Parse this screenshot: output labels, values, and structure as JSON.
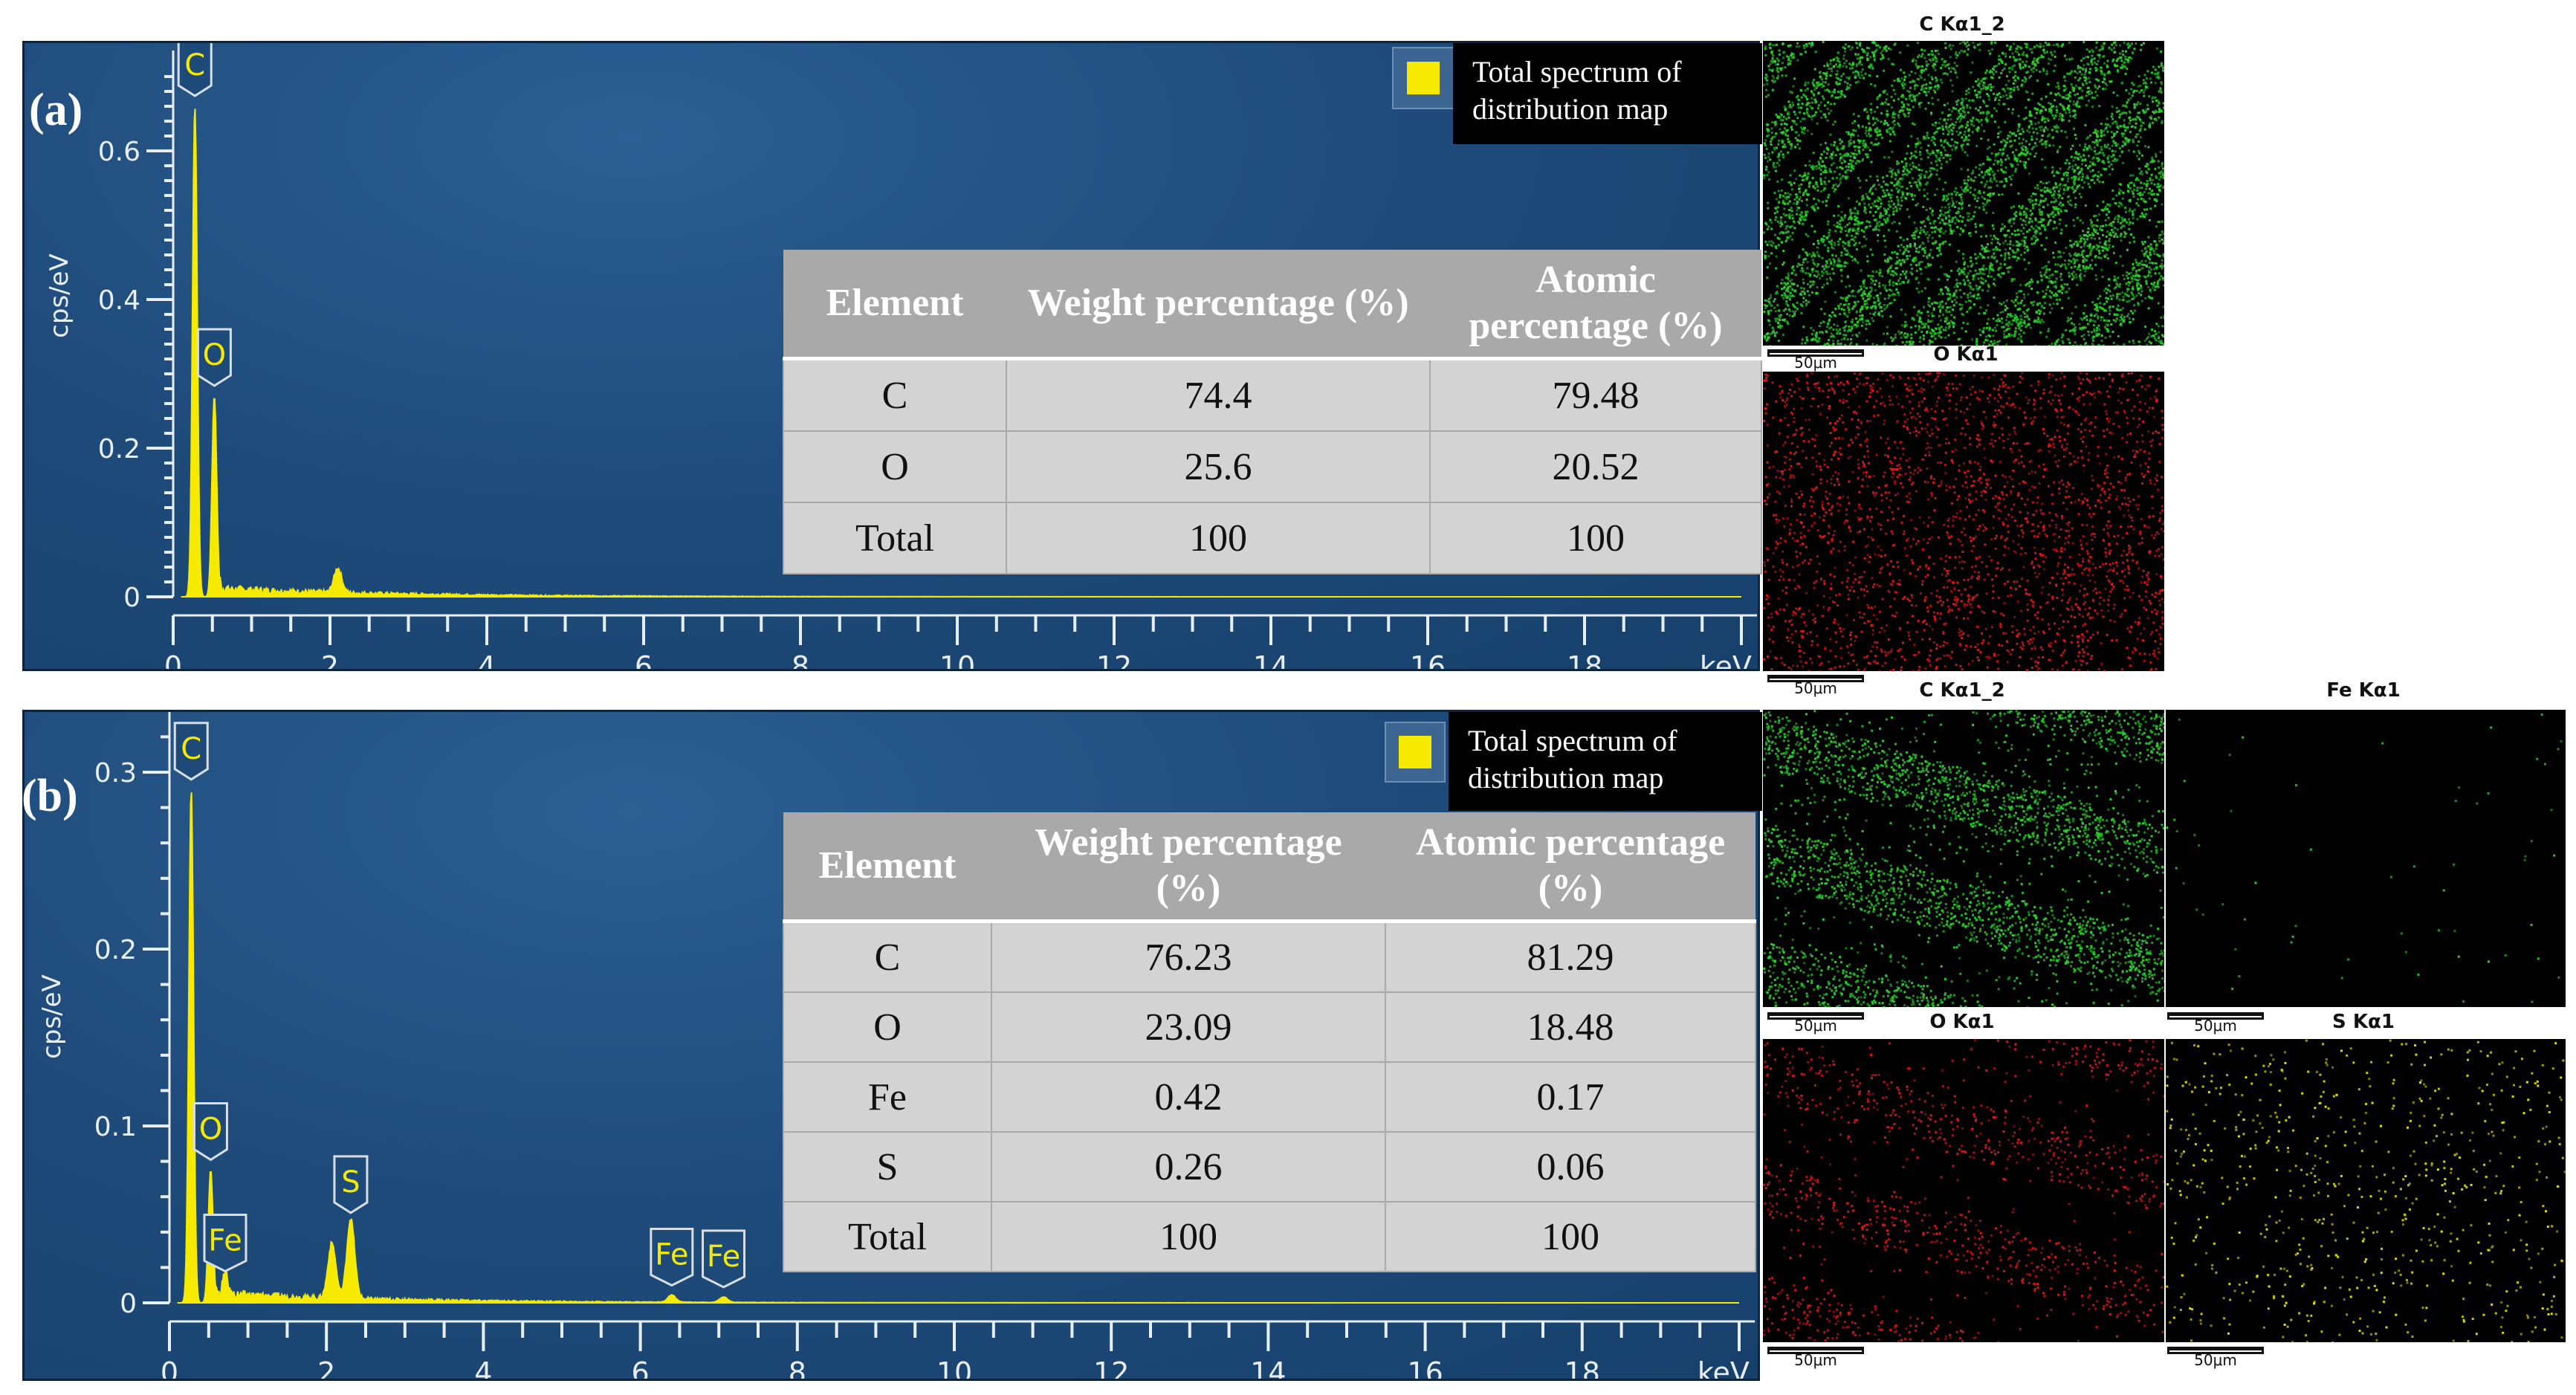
{
  "chart_data": [
    {
      "type": "line",
      "panel": "(a)",
      "ylabel": "cps/eV",
      "xlabel": "keV",
      "xlim": [
        0,
        20
      ],
      "ylim": [
        0,
        0.7
      ],
      "x_ticks": [
        0,
        2,
        4,
        6,
        8,
        10,
        12,
        14,
        16,
        18
      ],
      "y_ticks": [
        0,
        0.2,
        0.4,
        0.6
      ],
      "y_tick_labels": [
        "0",
        "0.2",
        "0.4",
        "0.6"
      ],
      "series": [
        {
          "color": "#f5ea00",
          "peaks": [
            {
              "x": 0.277,
              "y": 0.66,
              "label": "C"
            },
            {
              "x": 0.525,
              "y": 0.27,
              "label": "O"
            },
            {
              "x": 2.1,
              "y": 0.033,
              "label": ""
            }
          ]
        }
      ],
      "legend": {
        "text": "Total spectrum of distribution map",
        "color": "#f5ea00",
        "placement": "top-right"
      },
      "table": {
        "headers": [
          "Element",
          "Weight percentage (%)",
          "Atomic percentage (%)"
        ],
        "rows": [
          [
            "C",
            "74.4",
            "79.48"
          ],
          [
            "O",
            "25.6",
            "20.52"
          ],
          [
            "Total",
            "100",
            "100"
          ]
        ]
      }
    },
    {
      "type": "line",
      "panel": "(b)",
      "ylabel": "cps/eV",
      "xlabel": "keV",
      "xlim": [
        0,
        20
      ],
      "ylim": [
        0,
        0.33
      ],
      "x_ticks": [
        0,
        2,
        4,
        6,
        8,
        10,
        12,
        14,
        16,
        18
      ],
      "y_ticks": [
        0,
        0.1,
        0.2,
        0.3
      ],
      "y_tick_labels": [
        "0",
        "0.1",
        "0.2",
        "0.3"
      ],
      "series": [
        {
          "color": "#f5ea00",
          "peaks": [
            {
              "x": 0.277,
              "y": 0.29,
              "label": "C"
            },
            {
              "x": 0.525,
              "y": 0.075,
              "label": "O"
            },
            {
              "x": 0.71,
              "y": 0.012,
              "label": "Fe"
            },
            {
              "x": 2.07,
              "y": 0.031,
              "label": ""
            },
            {
              "x": 2.31,
              "y": 0.045,
              "label": "S"
            },
            {
              "x": 6.4,
              "y": 0.004,
              "label": "Fe"
            },
            {
              "x": 7.06,
              "y": 0.003,
              "label": "Fe"
            }
          ]
        }
      ],
      "legend": {
        "text": "Total spectrum of distribution map",
        "color": "#f5ea00",
        "placement": "top-right"
      },
      "table": {
        "headers": [
          "Element",
          "Weight percentage (%)",
          "Atomic percentage (%)"
        ],
        "rows": [
          [
            "C",
            "76.23",
            "81.29"
          ],
          [
            "O",
            "23.09",
            "18.48"
          ],
          [
            "Fe",
            "0.42",
            "0.17"
          ],
          [
            "S",
            "0.26",
            "0.06"
          ],
          [
            "Total",
            "100",
            "100"
          ]
        ]
      }
    }
  ],
  "maps_a": [
    {
      "label": "C Kα1_2",
      "color": "#2fd02f",
      "scalebar": "50μm"
    },
    {
      "label": "O Kα1",
      "color": "#e01818",
      "scalebar": "50μm"
    }
  ],
  "maps_b": [
    {
      "label": "C Kα1_2",
      "color": "#2fd02f",
      "scalebar": "50μm"
    },
    {
      "label": "Fe Kα1",
      "color": "#2fd02f",
      "scalebar": "50μm"
    },
    {
      "label": "O Kα1",
      "color": "#e01818",
      "scalebar": "50μm"
    },
    {
      "label": "S Kα1",
      "color": "#e6e600",
      "scalebar": "50μm"
    }
  ]
}
